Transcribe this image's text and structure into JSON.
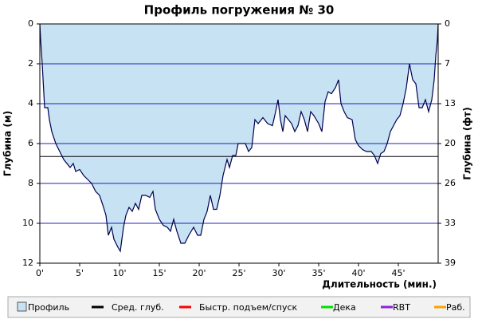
{
  "chart_data": {
    "type": "area",
    "title": "Профиль погружения № 30",
    "x_label": "Длительность (мин.)",
    "y_label": "Глубина (м)",
    "y2_label": "Глубина (фт)",
    "xlim": [
      0,
      50
    ],
    "xticks": [
      {
        "value": 0,
        "label": "0'"
      },
      {
        "value": 5,
        "label": "5'"
      },
      {
        "value": 10,
        "label": "10'"
      },
      {
        "value": 15,
        "label": "15'"
      },
      {
        "value": 20,
        "label": "20'"
      },
      {
        "value": 25,
        "label": "25'"
      },
      {
        "value": 30,
        "label": "30'"
      },
      {
        "value": 35,
        "label": "35'"
      },
      {
        "value": 40,
        "label": "40'"
      },
      {
        "value": 45,
        "label": "45'"
      }
    ],
    "ylim": [
      0,
      12
    ],
    "y_reversed": true,
    "yticks": [
      0,
      2,
      4,
      6,
      8,
      10,
      12
    ],
    "y2lim": [
      0,
      39.37
    ],
    "y2ticks": [
      0,
      {
        "value": 6.56,
        "label": "7"
      },
      {
        "value": 13.12,
        "label": "13"
      },
      {
        "value": 19.69,
        "label": "20"
      },
      {
        "value": 26.25,
        "label": "26"
      },
      {
        "value": 32.81,
        "label": "33"
      },
      {
        "value": 39.37,
        "label": "39"
      }
    ],
    "grid": true,
    "grid_color": "#2020c0",
    "line_color": "#000050",
    "x": [
      0,
      0.1,
      0.3,
      0.6,
      1.0,
      1.2,
      1.5,
      2,
      2.5,
      3,
      3.8,
      4.2,
      4.5,
      5,
      5.5,
      6,
      6.5,
      7,
      7.5,
      8,
      8.3,
      8.6,
      9,
      9.3,
      9.8,
      10.1,
      10.5,
      10.8,
      11.2,
      11.6,
      12,
      12.4,
      12.8,
      13.3,
      13.8,
      14.2,
      14.5,
      15,
      15.5,
      16,
      16.4,
      16.8,
      17.2,
      17.7,
      18.2,
      18.7,
      19.3,
      19.8,
      20.2,
      20.6,
      21,
      21.4,
      21.8,
      22.2,
      22.6,
      23,
      23.5,
      23.8,
      24.2,
      24.6,
      24.9,
      25.4,
      25.8,
      26.2,
      26.6,
      27,
      27.4,
      28,
      28.6,
      29.2,
      29.6,
      29.9,
      30.2,
      30.5,
      30.8,
      31.2,
      31.6,
      32,
      32.4,
      32.8,
      33.2,
      33.6,
      34,
      34.4,
      35,
      35.4,
      35.8,
      36.2,
      36.6,
      37.1,
      37.5,
      37.8,
      38.2,
      38.6,
      39.2,
      39.6,
      40,
      40.5,
      41,
      41.6,
      42,
      42.4,
      42.8,
      43.2,
      43.6,
      44,
      44.4,
      44.8,
      45.2,
      45.6,
      46,
      46.4,
      46.8,
      47.2,
      47.6,
      48,
      48.4,
      48.8,
      49.2,
      49.5,
      49.7,
      49.9,
      50
    ],
    "series": [
      {
        "name": "Профиль",
        "color": "#c6e2f3",
        "values": [
          0,
          0.8,
          2,
          4.2,
          4.2,
          4.8,
          5.4,
          6.0,
          6.4,
          6.8,
          7.2,
          7,
          7.4,
          7.3,
          7.6,
          7.8,
          8,
          8.4,
          8.6,
          9.2,
          9.6,
          10.6,
          10.2,
          10.8,
          11.2,
          11.4,
          10.2,
          9.6,
          9.2,
          9.4,
          9.0,
          9.3,
          8.6,
          8.6,
          8.7,
          8.4,
          9.3,
          9.8,
          10.1,
          10.2,
          10.4,
          9.8,
          10.4,
          11,
          11,
          10.6,
          10.2,
          10.6,
          10.6,
          9.8,
          9.4,
          8.6,
          9.3,
          9.3,
          8.6,
          7.6,
          6.8,
          7.2,
          6.6,
          6.6,
          6.0,
          6.0,
          6.0,
          6.4,
          6.2,
          4.8,
          5.0,
          4.7,
          5.0,
          5.1,
          4.4,
          3.8,
          4.8,
          5.4,
          4.6,
          4.8,
          5.0,
          5.4,
          5.1,
          4.4,
          4.8,
          5.4,
          4.4,
          4.6,
          5.0,
          5.4,
          3.9,
          3.4,
          3.5,
          3.2,
          2.8,
          4.0,
          4.4,
          4.7,
          4.8,
          5.8,
          6.1,
          6.3,
          6.4,
          6.4,
          6.6,
          7.0,
          6.5,
          6.4,
          6.0,
          5.4,
          5.1,
          4.8,
          4.6,
          4.0,
          3.2,
          2.0,
          2.8,
          3.0,
          4.2,
          4.2,
          3.8,
          4.4,
          3.8,
          2.8,
          1.6,
          0.8,
          0
        ]
      },
      {
        "name": "Сред. глуб.",
        "color": "#000000",
        "value": 6.65
      },
      {
        "name": "Быстр. подъем/спуск",
        "color": "#ff0000"
      },
      {
        "name": "Дека",
        "color": "#00e000"
      },
      {
        "name": "RBT",
        "color": "#9020e0"
      },
      {
        "name": "Раб.",
        "color": "#ffa000"
      }
    ]
  }
}
